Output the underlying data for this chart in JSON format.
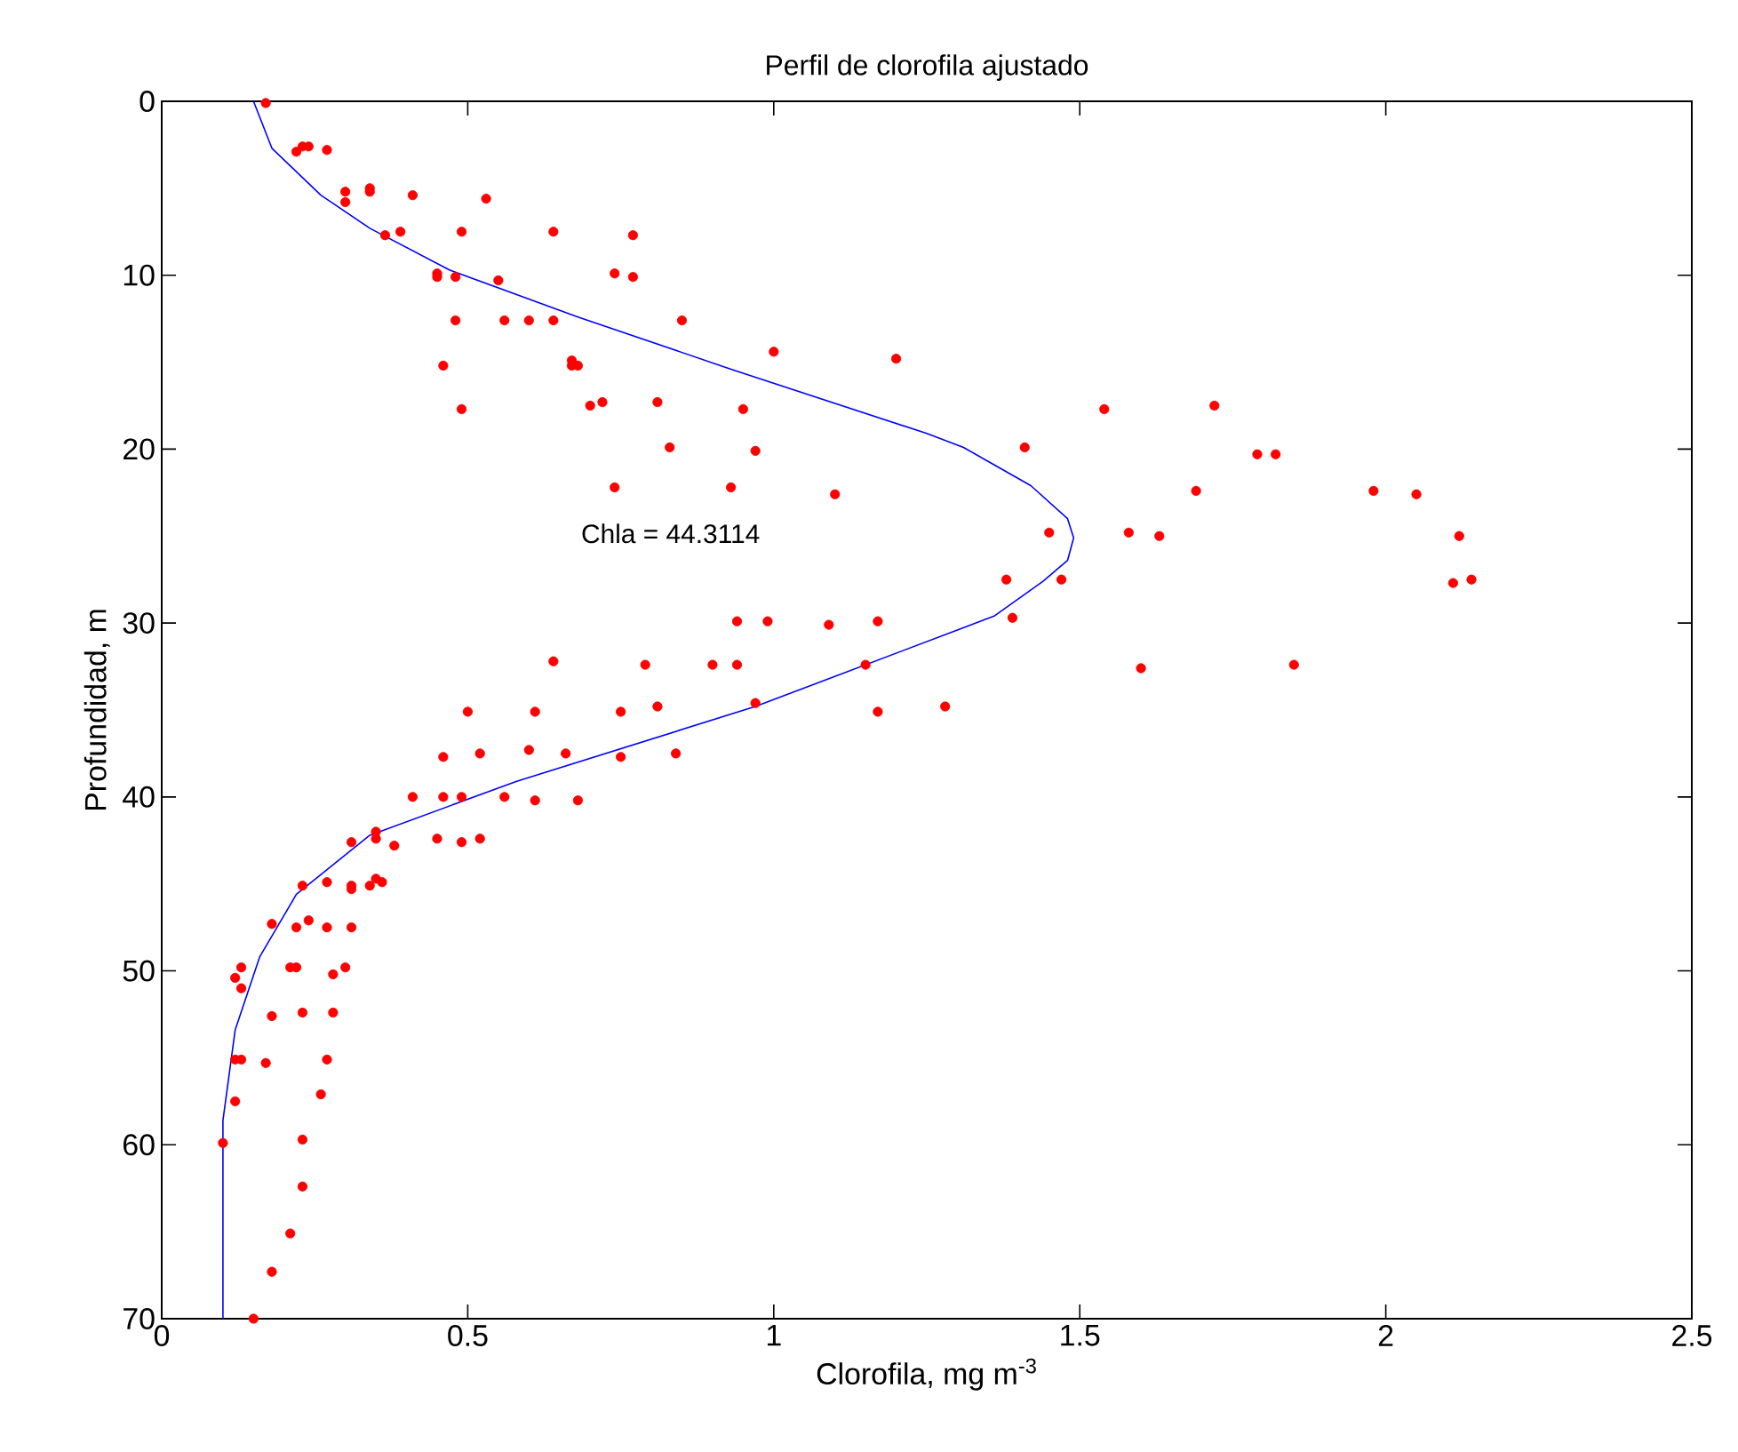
{
  "chart_data": {
    "type": "scatter",
    "title": "Perfil de clorofila ajustado",
    "xlabel": "Clorofila, mg m$^{-3}$",
    "ylabel": "Profundidad, m",
    "annotations": [
      "Chla = 44.3114"
    ],
    "xlim": [
      0,
      2.5
    ],
    "ylim": [
      70,
      0
    ],
    "xticks": [
      0,
      0.5,
      1,
      1.5,
      2,
      2.5
    ],
    "yticks": [
      0,
      10,
      20,
      30,
      40,
      50,
      60,
      70
    ],
    "series": [
      {
        "marker": "circle",
        "color": "#ff0000",
        "x": [
          0.17,
          0.22,
          0.23,
          0.24,
          0.27,
          0.3,
          0.3,
          0.34,
          0.34,
          0.41,
          0.53,
          0.365,
          0.39,
          0.49,
          0.64,
          0.77,
          0.45,
          0.45,
          0.48,
          0.55,
          0.74,
          0.77,
          0.48,
          0.56,
          0.6,
          0.64,
          0.85,
          0.46,
          0.67,
          0.68,
          0.67,
          1.0,
          1.2,
          0.49,
          0.7,
          0.72,
          0.81,
          0.95,
          0.83,
          0.97,
          0.74,
          0.93,
          1.1,
          1.54,
          1.72,
          1.41,
          1.79,
          1.82,
          1.69,
          1.98,
          2.05,
          1.45,
          1.58,
          1.63,
          2.12,
          1.38,
          1.47,
          2.11,
          2.14,
          1.39,
          1.6,
          1.85,
          1.28,
          0.94,
          0.99,
          1.09,
          1.17,
          0.64,
          0.79,
          0.9,
          0.94,
          1.15,
          0.5,
          0.61,
          0.75,
          0.81,
          0.97,
          1.17,
          0.46,
          0.52,
          0.6,
          0.66,
          0.75,
          0.84,
          0.41,
          0.46,
          0.49,
          0.56,
          0.61,
          0.68,
          0.31,
          0.35,
          0.35,
          0.38,
          0.45,
          0.49,
          0.52,
          0.23,
          0.27,
          0.31,
          0.31,
          0.34,
          0.35,
          0.36,
          0.18,
          0.22,
          0.24,
          0.27,
          0.31,
          0.13,
          0.21,
          0.22,
          0.3,
          0.28,
          0.12,
          0.13,
          0.18,
          0.23,
          0.28,
          0.12,
          0.13,
          0.17,
          0.27,
          0.26,
          0.12,
          0.1,
          0.23,
          0.23,
          0.21,
          0.18,
          0.15
        ],
        "values": [
          0.1,
          2.9,
          2.6,
          2.6,
          2.8,
          5.2,
          5.8,
          5.0,
          5.2,
          5.4,
          5.6,
          7.7,
          7.5,
          7.5,
          7.5,
          7.7,
          10.1,
          9.9,
          10.1,
          10.3,
          9.9,
          10.1,
          12.6,
          12.6,
          12.6,
          12.6,
          12.6,
          15.2,
          14.9,
          15.2,
          15.2,
          14.4,
          14.8,
          17.7,
          17.5,
          17.3,
          17.3,
          17.7,
          19.9,
          20.1,
          22.2,
          22.2,
          22.6,
          17.7,
          17.5,
          19.9,
          20.3,
          20.3,
          22.4,
          22.4,
          22.6,
          24.8,
          24.8,
          25.0,
          25.0,
          27.5,
          27.5,
          27.7,
          27.5,
          29.7,
          32.6,
          32.4,
          34.8,
          29.9,
          29.9,
          30.1,
          29.9,
          32.2,
          32.4,
          32.4,
          32.4,
          32.4,
          35.1,
          35.1,
          35.1,
          34.8,
          34.6,
          35.1,
          37.7,
          37.5,
          37.3,
          37.5,
          37.7,
          37.5,
          40.0,
          40.0,
          40.0,
          40.0,
          40.2,
          40.2,
          42.6,
          42.0,
          42.4,
          42.8,
          42.4,
          42.6,
          42.4,
          45.1,
          44.9,
          45.1,
          45.3,
          45.1,
          44.7,
          44.9,
          47.3,
          47.5,
          47.1,
          47.5,
          47.5,
          49.8,
          49.8,
          49.8,
          49.8,
          50.2,
          50.4,
          51.0,
          52.6,
          52.4,
          52.4,
          55.1,
          55.1,
          55.3,
          55.1,
          57.1,
          57.5,
          59.9,
          59.7,
          62.4,
          65.1,
          67.3,
          70.0
        ]
      },
      {
        "type": "line",
        "marker": "none",
        "color": "#0000ff",
        "x": [
          0.15,
          0.18,
          0.26,
          0.34,
          0.47,
          0.68,
          0.93,
          1.25,
          1.31,
          1.34,
          1.42,
          1.48,
          1.49,
          1.48,
          1.44,
          1.36,
          1.3,
          0.97,
          0.58,
          0.34,
          0.22,
          0.16,
          0.12,
          0.1,
          0.1
        ],
        "values": [
          0.0,
          2.7,
          5.4,
          7.3,
          9.7,
          12.4,
          15.4,
          19.1,
          19.9,
          20.5,
          22.1,
          24.0,
          25.1,
          26.4,
          27.6,
          29.6,
          30.4,
          34.8,
          39.1,
          42.2,
          45.6,
          49.2,
          53.4,
          58.6,
          70.0
        ]
      }
    ]
  }
}
